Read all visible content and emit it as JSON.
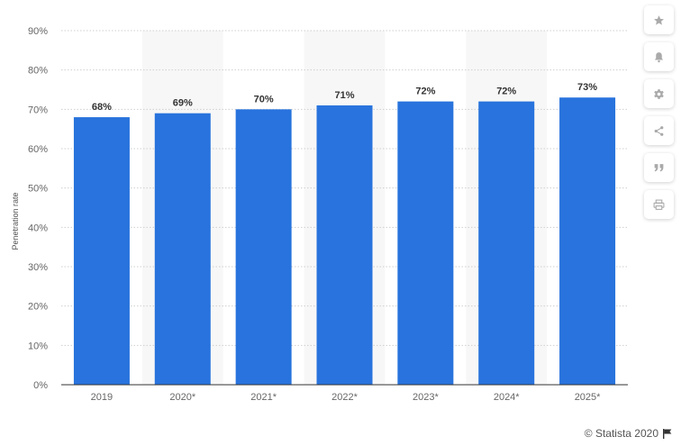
{
  "chart_data": {
    "type": "bar",
    "categories": [
      "2019",
      "2020*",
      "2021*",
      "2022*",
      "2023*",
      "2024*",
      "2025*"
    ],
    "values": [
      68,
      69,
      70,
      71,
      72,
      72,
      73
    ],
    "value_labels": [
      "68%",
      "69%",
      "70%",
      "71%",
      "72%",
      "72%",
      "73%"
    ],
    "ylabel": "Penetration rate",
    "ylim": [
      0,
      90
    ],
    "yticks": [
      0,
      10,
      20,
      30,
      40,
      50,
      60,
      70,
      80,
      90
    ],
    "ytick_labels": [
      "0%",
      "10%",
      "20%",
      "30%",
      "40%",
      "50%",
      "60%",
      "70%",
      "80%",
      "90%"
    ],
    "grid": true,
    "alternating_column_shading": true
  },
  "colors": {
    "bar": "#2873dd",
    "band": "#f7f7f7",
    "grid": "#cfcfcf",
    "axis": "#333333",
    "icon": "#aaaaaa"
  },
  "toolbar": {
    "icons": [
      "star-icon",
      "bell-icon",
      "gear-icon",
      "share-icon",
      "quote-icon",
      "print-icon"
    ]
  },
  "footer": {
    "credit": "© Statista 2020",
    "flag_icon": "flag-icon"
  }
}
